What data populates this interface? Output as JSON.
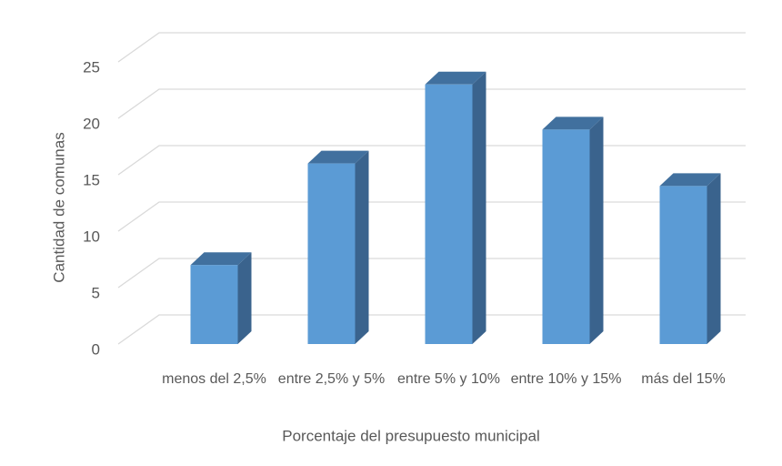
{
  "chart_data": {
    "type": "bar3d",
    "x_label": "Porcentaje del presupuesto municipal",
    "y_label": "Cantidad de comunas",
    "categories": [
      "menos del 2,5%",
      "entre 2,5% y 5%",
      "entre 5% y 10%",
      "entre 10% y 15%",
      "más del 15%"
    ],
    "values": [
      7,
      16,
      23,
      19,
      14
    ],
    "color": "#5b9bd5",
    "ylim": [
      0,
      25
    ],
    "yticks": [
      0,
      5,
      10,
      15,
      20,
      25
    ],
    "grid": true
  }
}
